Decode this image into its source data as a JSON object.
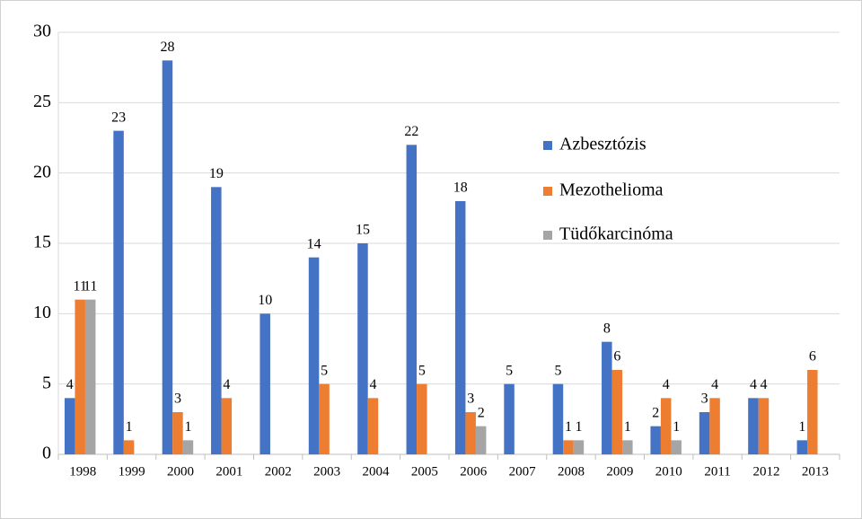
{
  "chart_data": {
    "type": "bar",
    "categories": [
      "1998",
      "1999",
      "2000",
      "2001",
      "2002",
      "2003",
      "2004",
      "2005",
      "2006",
      "2007",
      "2008",
      "2009",
      "2010",
      "2011",
      "2012",
      "2013"
    ],
    "series": [
      {
        "name": "Azbesztózis",
        "color": "#4472c4",
        "values": [
          4,
          23,
          28,
          19,
          10,
          14,
          15,
          22,
          18,
          5,
          5,
          8,
          2,
          3,
          4,
          1
        ]
      },
      {
        "name": "Mezothelioma",
        "color": "#ed7d31",
        "values": [
          11,
          1,
          3,
          4,
          null,
          5,
          4,
          5,
          3,
          null,
          1,
          6,
          4,
          4,
          4,
          6
        ]
      },
      {
        "name": "Tüdőkarcinóma",
        "color": "#a5a5a5",
        "values": [
          11,
          null,
          1,
          null,
          null,
          null,
          null,
          null,
          2,
          null,
          1,
          1,
          1,
          null,
          null,
          null
        ]
      }
    ],
    "ylim": [
      0,
      30
    ],
    "yticks": [
      0,
      5,
      10,
      15,
      20,
      25,
      30
    ],
    "grid": true,
    "legend": "right"
  }
}
